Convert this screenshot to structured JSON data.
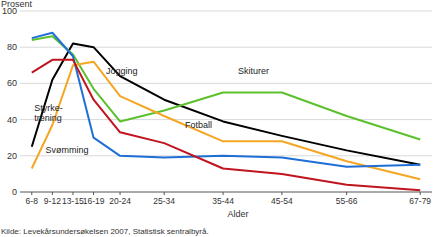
{
  "chart_data": {
    "type": "line",
    "ylabel": "Prosent",
    "xlabel": "Alder",
    "note": "Kilde: Levekårsundersøkelsen 2007, Statistisk sentralbyrå.",
    "x": [
      7,
      10.5,
      14,
      17.5,
      22,
      29.5,
      39.5,
      49.5,
      60.5,
      73
    ],
    "xlim": [
      5,
      75
    ],
    "xticks": [
      {
        "value": 7,
        "label": "6-8"
      },
      {
        "value": 10.5,
        "label": "9-12"
      },
      {
        "value": 14,
        "label": "13-15"
      },
      {
        "value": 17.5,
        "label": "16-19"
      },
      {
        "value": 22,
        "label": "20-24"
      },
      {
        "value": 29.5,
        "label": "25-34"
      },
      {
        "value": 39.5,
        "label": "35-44"
      },
      {
        "value": 49.5,
        "label": "45-54"
      },
      {
        "value": 60.5,
        "label": "55-66"
      },
      {
        "value": 73,
        "label": "67-79"
      }
    ],
    "ylim": [
      0,
      100
    ],
    "yticks": [
      0,
      20,
      40,
      60,
      80,
      100
    ],
    "grid": true,
    "series": [
      {
        "name": "Jogging",
        "color": "#000000",
        "values": [
          25,
          62,
          82,
          80,
          64,
          51,
          39,
          31,
          23,
          15
        ]
      },
      {
        "name": "Skiturer",
        "color": "#5cc02c",
        "values": [
          84,
          86,
          76,
          57,
          39,
          45,
          55,
          55,
          42,
          29
        ]
      },
      {
        "name": "Styrke-trening",
        "color": "#f5a623",
        "values": [
          13,
          37,
          70,
          72,
          53,
          42,
          28,
          28,
          17,
          7
        ]
      },
      {
        "name": "Svømming",
        "color": "#1f6fd6",
        "values": [
          85,
          88,
          75,
          30,
          20,
          19,
          20,
          19,
          14,
          15
        ]
      },
      {
        "name": "Fotball",
        "color": "#c0141e",
        "values": [
          66,
          73,
          73,
          51,
          33,
          27,
          13,
          10,
          4,
          1
        ]
      }
    ]
  }
}
